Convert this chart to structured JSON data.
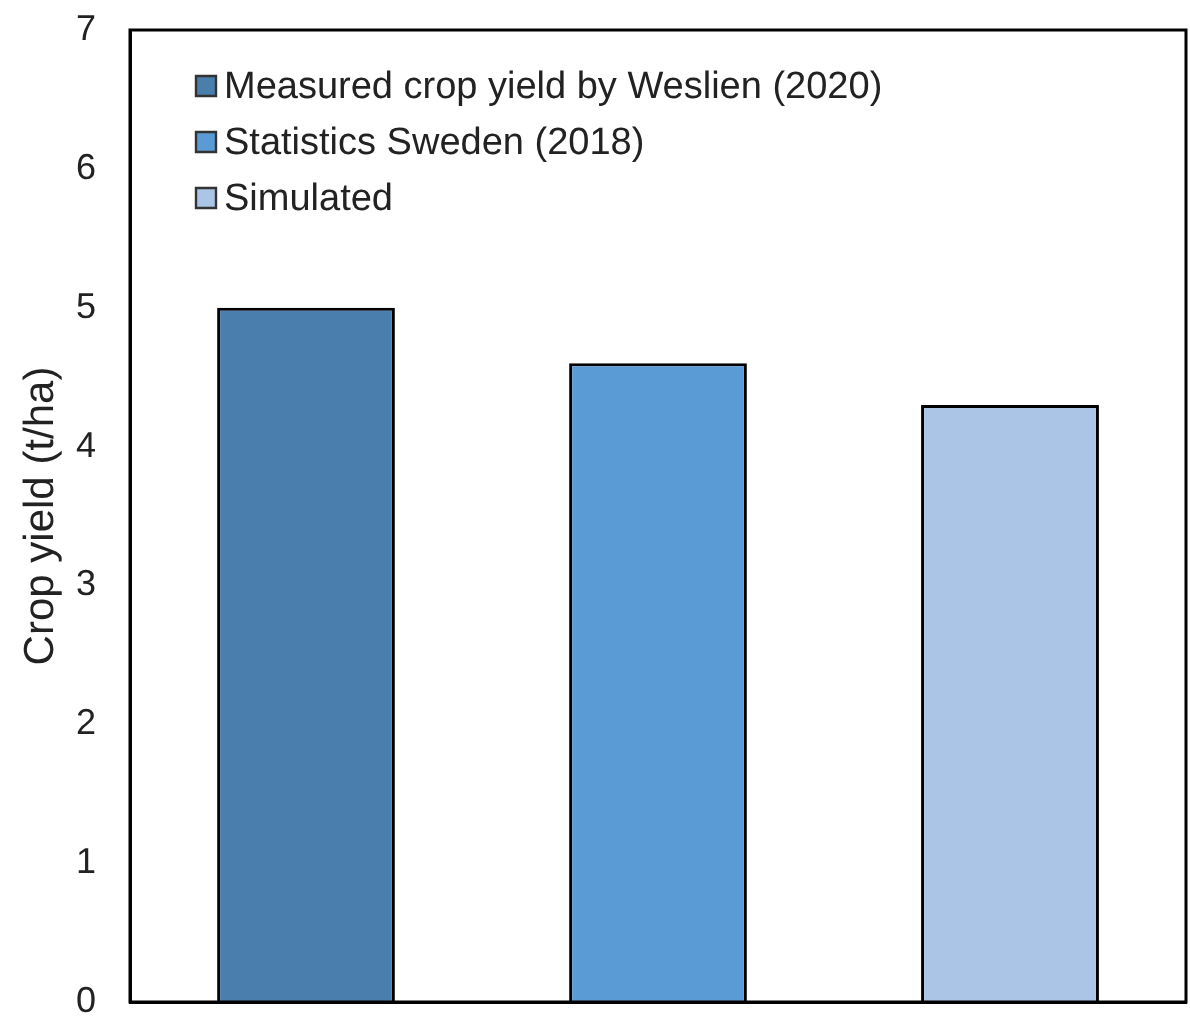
{
  "chart_data": {
    "type": "bar",
    "ylabel": "Crop yield (t/ha)",
    "categories": [
      null,
      null,
      null
    ],
    "series": [
      {
        "name": "Measured crop yield by Weslien (2020)",
        "color": "#4a7ead",
        "values": [
          5.0,
          null,
          null
        ]
      },
      {
        "name": "Statistics Sweden (2018)",
        "color": "#5b9bd5",
        "values": [
          null,
          4.6,
          null
        ]
      },
      {
        "name": "Simulated",
        "color": "#abc5e6",
        "values": [
          null,
          null,
          4.3
        ]
      }
    ],
    "ylim": [
      0,
      7
    ],
    "yticks": [
      0,
      1,
      2,
      3,
      4,
      5,
      6,
      7
    ],
    "legend": "top left"
  }
}
